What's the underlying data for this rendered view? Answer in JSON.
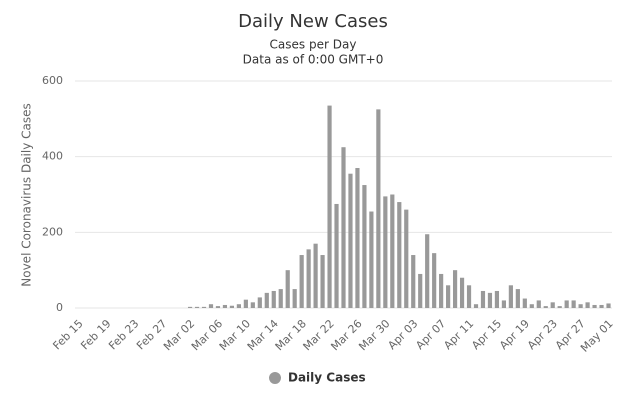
{
  "chart_data": {
    "type": "bar",
    "title": "Daily New Cases",
    "subtitle": [
      "Cases per Day",
      "Data as of 0:00 GMT+0"
    ],
    "y_label": "Novel Coronavirus Daily Cases",
    "categories": [
      "Feb 15",
      null,
      null,
      null,
      "Feb 19",
      null,
      null,
      null,
      "Feb 23",
      null,
      null,
      null,
      "Feb 27",
      null,
      null,
      null,
      "Mar 02",
      null,
      null,
      null,
      "Mar 06",
      null,
      null,
      null,
      "Mar 10",
      null,
      null,
      null,
      "Mar 14",
      null,
      null,
      null,
      "Mar 18",
      null,
      null,
      null,
      "Mar 22",
      null,
      null,
      null,
      "Mar 26",
      null,
      null,
      null,
      "Mar 30",
      null,
      null,
      null,
      "Apr 03",
      null,
      null,
      null,
      "Apr 07",
      null,
      null,
      null,
      "Apr 11",
      null,
      null,
      null,
      "Apr 15",
      null,
      null,
      null,
      "Apr 19",
      null,
      null,
      null,
      "Apr 23",
      null,
      null,
      null,
      "Apr 27",
      null,
      null,
      null,
      "May 01"
    ],
    "series": [
      {
        "name": "Daily Cases",
        "color": "#999999",
        "values": [
          0,
          0,
          0,
          0,
          0,
          0,
          0,
          0,
          0,
          0,
          0,
          0,
          0,
          0,
          0,
          0,
          3,
          3,
          3,
          10,
          5,
          8,
          6,
          10,
          22,
          15,
          28,
          40,
          45,
          50,
          100,
          50,
          140,
          155,
          170,
          140,
          535,
          275,
          425,
          355,
          370,
          325,
          255,
          525,
          295,
          300,
          280,
          260,
          140,
          90,
          195,
          145,
          90,
          60,
          100,
          80,
          60,
          10,
          45,
          40,
          45,
          20,
          60,
          50,
          25,
          10,
          20,
          5,
          15,
          5,
          20,
          20,
          10,
          15,
          8,
          8,
          12
        ]
      }
    ],
    "ylim": [
      0,
      600
    ],
    "yticks": [
      0,
      200,
      400,
      600
    ],
    "grid": true
  }
}
